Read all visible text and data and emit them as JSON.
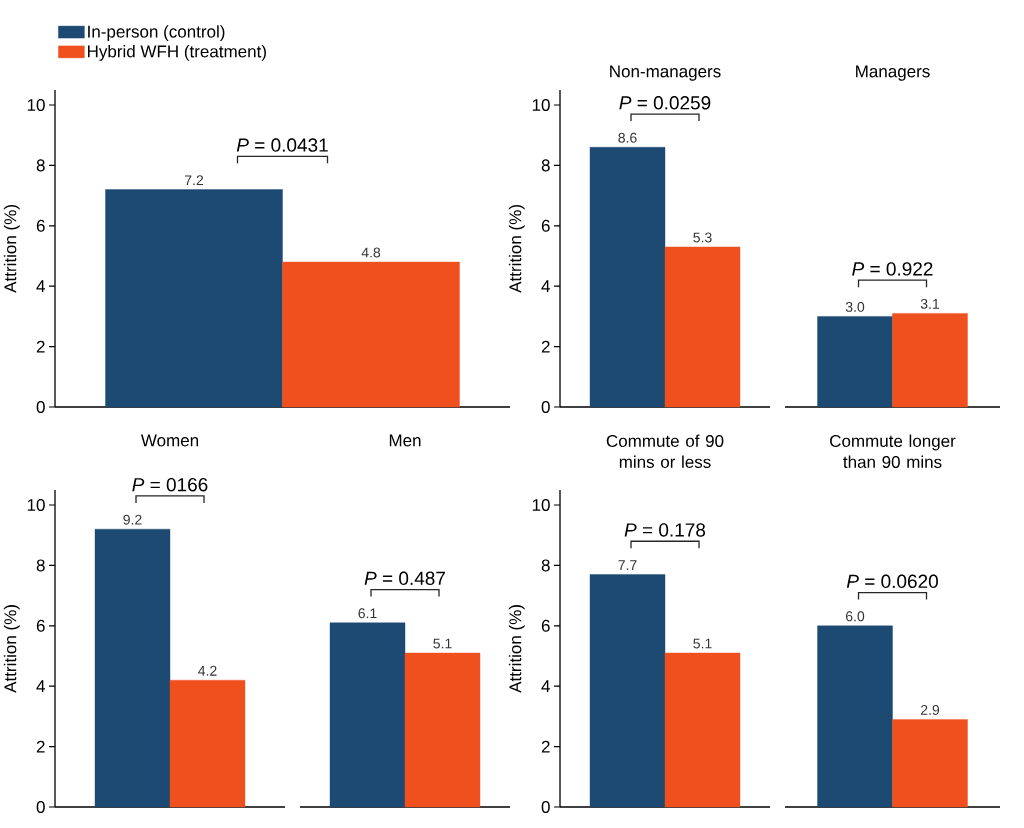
{
  "chart_data": [
    {
      "type": "bar",
      "categories": [
        null
      ],
      "series": [
        {
          "name": "In-person (control)",
          "color": "#1c4a72",
          "values": [
            7.2
          ]
        },
        {
          "name": "Hybrid WFH (treatment)",
          "color": "#f0501e",
          "values": [
            4.8
          ]
        }
      ],
      "ylabel": "Attrition (%)",
      "ylim": [
        0,
        10.5
      ],
      "yticks": [
        0,
        2,
        4,
        6,
        8,
        10
      ],
      "tick_labels": "y",
      "legend": "top left",
      "data_labels": true,
      "annotations": [
        "*P* = 0.0431"
      ]
    },
    {
      "type": "bar",
      "title": "Non-managers",
      "categories": [
        null
      ],
      "series": [
        {
          "color": "#1c4a72",
          "values": [
            8.6
          ]
        },
        {
          "color": "#f0501e",
          "values": [
            5.3
          ]
        }
      ],
      "ylabel": "Attrition (%)",
      "ylim": [
        0,
        10.5
      ],
      "yticks": [
        0,
        2,
        4,
        6,
        8,
        10
      ],
      "tick_labels": "y",
      "data_labels": true,
      "annotations": [
        "*P* = 0.0259"
      ]
    },
    {
      "type": "bar",
      "title": "Managers",
      "categories": [
        null
      ],
      "series": [
        {
          "color": "#1c4a72",
          "values": [
            3.0
          ],
          "value_labels": [
            "3.0"
          ]
        },
        {
          "color": "#f0501e",
          "values": [
            3.1
          ],
          "value_labels": [
            "3.1"
          ]
        }
      ],
      "tick_labels": false,
      "annotations": [
        "*P* = 0.922"
      ]
    },
    {
      "type": "bar",
      "title": "Women",
      "categories": [
        null
      ],
      "series": [
        {
          "color": "#1c4a72",
          "values": [
            9.2
          ]
        },
        {
          "color": "#f0501e",
          "values": [
            4.2
          ]
        }
      ],
      "ylabel": "Attrition (%)",
      "ylim": [
        0,
        10.5
      ],
      "yticks": [
        0,
        2,
        4,
        6,
        8,
        10
      ],
      "tick_labels": "y",
      "data_labels": true,
      "annotations": [
        "*P* = 0166"
      ]
    },
    {
      "type": "bar",
      "title": "Men",
      "categories": [
        null
      ],
      "series": [
        {
          "color": "#1c4a72",
          "values": [
            6.1
          ]
        },
        {
          "color": "#f0501e",
          "values": [
            5.1
          ]
        }
      ],
      "tick_labels": false,
      "data_labels": true,
      "annotations": [
        "*P* = 0.487"
      ]
    },
    {
      "type": "bar",
      "title": "Commute of 90 mins or less",
      "categories": [
        null
      ],
      "series": [
        {
          "color": "#1c4a72",
          "values": [
            7.7
          ]
        },
        {
          "color": "#f0501e",
          "values": [
            5.1
          ]
        }
      ],
      "ylabel": "Attrition (%)",
      "ylim": [
        0,
        10.5
      ],
      "yticks": [
        0,
        2,
        4,
        6,
        8,
        10
      ],
      "tick_labels": "y",
      "data_labels": true,
      "annotations": [
        "*P* = 0.178"
      ]
    },
    {
      "type": "bar",
      "title": "Commute longer than 90 mins",
      "categories": [
        null
      ],
      "series": [
        {
          "color": "#1c4a72",
          "values": [
            6.0
          ],
          "value_labels": [
            "6.0"
          ]
        },
        {
          "color": "#f0501e",
          "values": [
            2.9
          ],
          "value_labels": [
            "2.9"
          ]
        }
      ],
      "tick_labels": false,
      "annotations": [
        "*P* = 0.0620"
      ]
    }
  ]
}
